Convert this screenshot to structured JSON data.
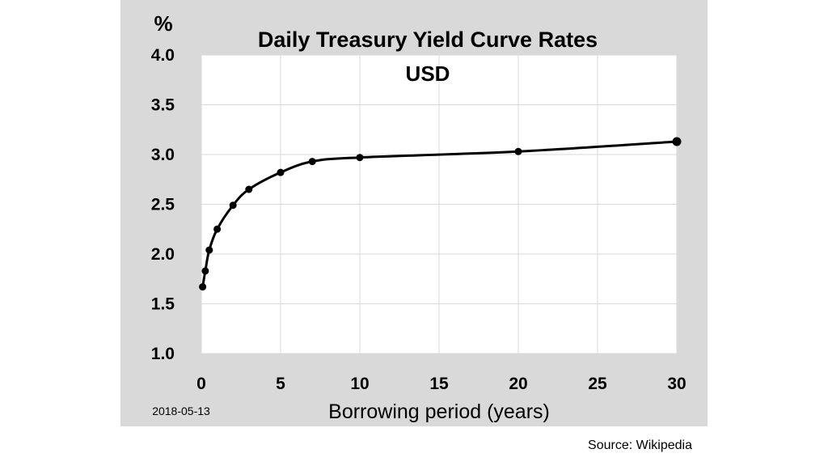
{
  "source_note": "Source: Wikipedia",
  "colors": {
    "panel_background": "#d9d9d9",
    "plot_background": "#ffffff",
    "grid": "#d9d9d9",
    "line": "#000000"
  },
  "chart_data": {
    "type": "line",
    "title": "Daily Treasury Yield Curve Rates",
    "subtitle": "USD",
    "xlabel": "Borrowing period (years)",
    "ylabel": "%",
    "date_label": "2018-05-13",
    "xlim": [
      0,
      30
    ],
    "ylim": [
      1.0,
      4.0
    ],
    "x_ticks": [
      "0",
      "5",
      "10",
      "15",
      "20",
      "25",
      "30"
    ],
    "x_tick_values": [
      0,
      5,
      10,
      15,
      20,
      25,
      30
    ],
    "y_ticks": [
      "1.0",
      "1.5",
      "2.0",
      "2.5",
      "3.0",
      "3.5",
      "4.0"
    ],
    "y_tick_values": [
      1.0,
      1.5,
      2.0,
      2.5,
      3.0,
      3.5,
      4.0
    ],
    "grid": true,
    "legend": "none",
    "series": [
      {
        "x": [
          0.083,
          0.25,
          0.5,
          1,
          2,
          3,
          5,
          7,
          10,
          20,
          30
        ],
        "y": [
          1.67,
          1.83,
          2.04,
          2.25,
          2.49,
          2.65,
          2.82,
          2.93,
          2.97,
          3.03,
          3.13
        ]
      }
    ]
  }
}
